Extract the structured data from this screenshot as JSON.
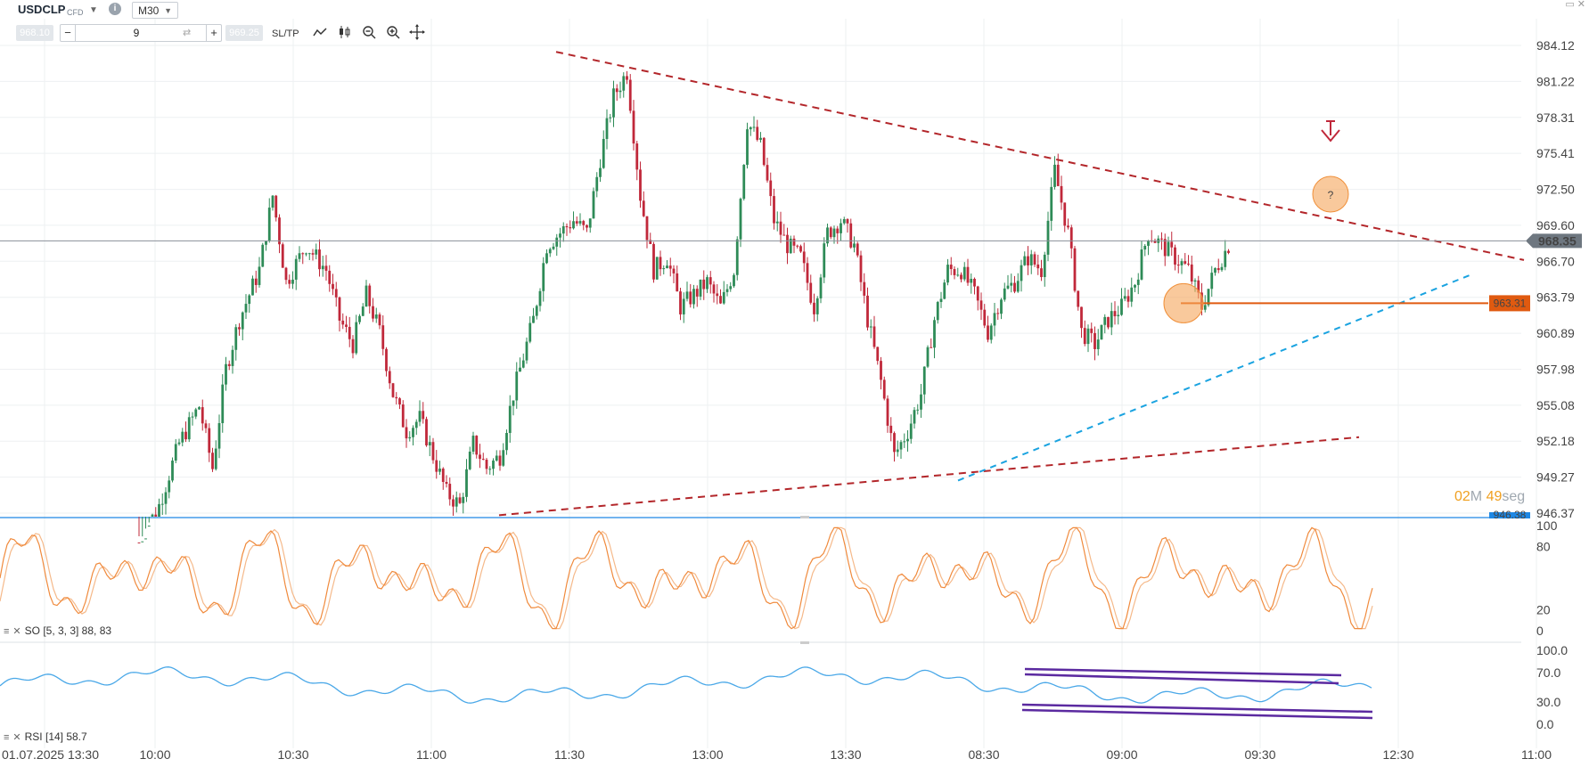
{
  "toolbar": {
    "symbol": "USDCLP",
    "symbol_type": "CFD",
    "timeframe": "M30",
    "bid": "968.10",
    "ask": "969.25",
    "quantity": "9",
    "sltp_label": "SL/TP",
    "icons": [
      "info-icon",
      "line-chart-icon",
      "candlestick-icon",
      "zoom-out-icon",
      "zoom-in-icon",
      "crosshair-icon"
    ]
  },
  "price_axis": {
    "labels": [
      "984.12",
      "981.22",
      "978.31",
      "975.41",
      "972.50",
      "969.60",
      "966.70",
      "963.79",
      "960.89",
      "957.98",
      "955.08",
      "952.18",
      "949.27",
      "946.37"
    ],
    "current_price": "968.35",
    "horizontal_level": "963.31",
    "bottom_price_partial": "946.38"
  },
  "time_axis": {
    "labels": [
      "01.07.2025 13:30",
      "10:00",
      "10:30",
      "11:00",
      "11:30",
      "13:00",
      "13:30",
      "08:30",
      "09:00",
      "09:30",
      "12:30",
      "11:00"
    ]
  },
  "countdown": {
    "minutes": "02",
    "minutes_unit": "M",
    "seconds": "49",
    "seconds_unit": "seg"
  },
  "annotations": {
    "question_mark": "?"
  },
  "stochastic": {
    "label": "SO [5, 3, 3] 88, 83",
    "levels": [
      "100",
      "80",
      "20",
      "0"
    ]
  },
  "rsi": {
    "label": "RSI [14] 58.7",
    "levels": [
      "100.0",
      "70.0",
      "30.0",
      "0.0"
    ]
  },
  "colors": {
    "bull": "#2e8b57",
    "bear": "#c0283a",
    "trend_red": "#b3262a",
    "trend_blue": "#1aa3e0",
    "level_orange": "#e05a10",
    "price_tag": "#6e7780",
    "so_main": "#f08a3c",
    "so_signal": "#f5b98a",
    "rsi_line": "#4aa8e8",
    "rsi_channel": "#5b2aa0"
  },
  "chart_data": {
    "type": "candlestick",
    "symbol": "USDCLP",
    "timeframe": "M30",
    "y_range": [
      945.6,
      985.0
    ],
    "x_ticks": [
      "01.07.2025 13:30",
      "10:00",
      "10:30",
      "11:00",
      "11:30",
      "13:00",
      "13:30",
      "08:30",
      "09:00",
      "09:30",
      "12:30",
      "11:00"
    ],
    "key_swings": [
      {
        "label": "low near 10:00",
        "price": 946.4
      },
      {
        "label": "high near 10:30",
        "price": 971.9
      },
      {
        "label": "low near 11:20",
        "price": 946.4
      },
      {
        "label": "high near 12:45",
        "price": 982.4
      },
      {
        "label": "high near 13:20",
        "price": 978.8
      },
      {
        "label": "low near 08:30",
        "price": 949.5
      },
      {
        "label": "high near 09:05",
        "price": 974.1
      },
      {
        "label": "low near 09:20",
        "price": 959.6
      },
      {
        "label": "high near 09:35",
        "price": 970.0
      },
      {
        "label": "last",
        "price": 968.35
      }
    ],
    "current_price": 968.35,
    "horizontal_level": 963.31,
    "stochastic": {
      "params": "[5, 3, 3]",
      "main": 88,
      "signal": 83,
      "range": [
        0,
        100
      ]
    },
    "rsi": {
      "period": 14,
      "value": 58.7,
      "range": [
        0,
        100
      ]
    }
  }
}
